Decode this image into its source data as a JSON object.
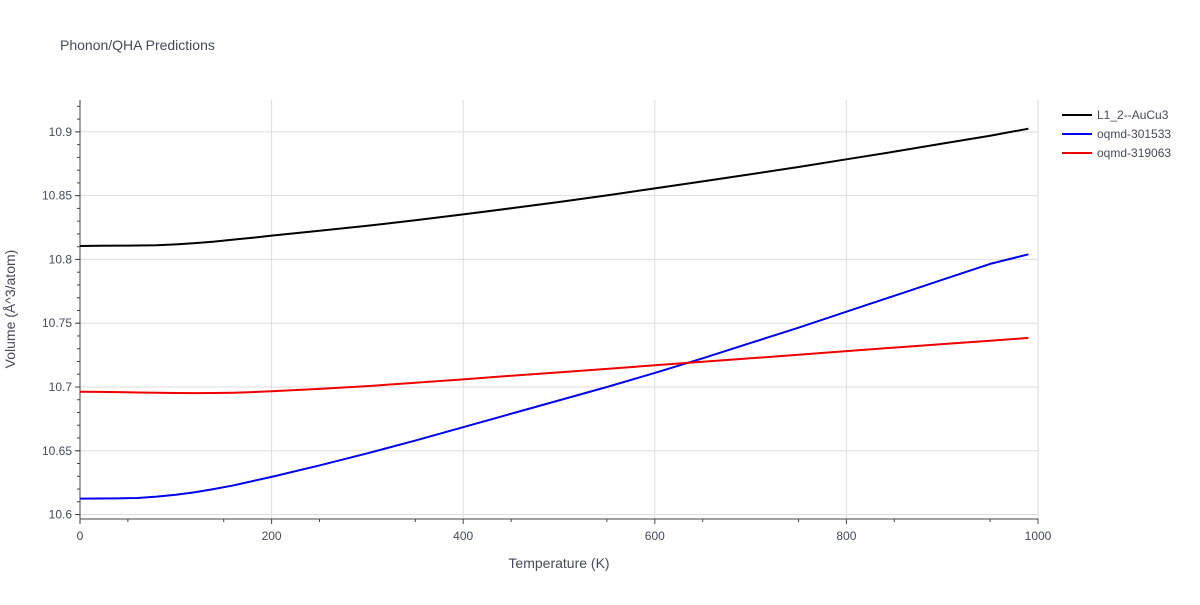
{
  "chart_data": {
    "type": "line",
    "title": "Phonon/QHA Predictions",
    "xlabel": "Temperature (K)",
    "ylabel": "Volume (Å^3/atom)",
    "xlim": [
      0,
      1000
    ],
    "ylim": [
      10.5965,
      10.925
    ],
    "xticks": [
      0,
      200,
      400,
      600,
      800,
      1000
    ],
    "yticks": [
      10.6,
      10.65,
      10.7,
      10.75,
      10.8,
      10.85,
      10.9
    ],
    "xtick_labels": [
      "0",
      "200",
      "400",
      "600",
      "800",
      "1000"
    ],
    "ytick_labels": [
      "10.6",
      "10.65",
      "10.7",
      "10.75",
      "10.8",
      "10.85",
      "10.9"
    ],
    "grid": true,
    "legend_position": "top-right",
    "series": [
      {
        "name": "L1_2--AuCu3",
        "color": "#000000",
        "x": [
          0,
          20,
          40,
          60,
          80,
          100,
          120,
          140,
          160,
          180,
          200,
          250,
          300,
          350,
          400,
          450,
          500,
          550,
          600,
          650,
          700,
          750,
          800,
          850,
          900,
          950,
          990
        ],
        "y": [
          10.8105,
          10.8107,
          10.8108,
          10.8109,
          10.8111,
          10.8118,
          10.8128,
          10.814,
          10.8155,
          10.817,
          10.8187,
          10.8225,
          10.8264,
          10.8307,
          10.8353,
          10.8401,
          10.845,
          10.8502,
          10.8557,
          10.8612,
          10.8668,
          10.8725,
          10.8785,
          10.8845,
          10.8908,
          10.897,
          10.9025
        ]
      },
      {
        "name": "oqmd-301533",
        "color": "#0000ee",
        "x": [
          0,
          20,
          40,
          60,
          80,
          100,
          120,
          140,
          160,
          180,
          200,
          250,
          300,
          350,
          400,
          450,
          500,
          550,
          600,
          650,
          700,
          750,
          800,
          850,
          900,
          950,
          990
        ],
        "y": [
          10.6125,
          10.6126,
          10.6127,
          10.613,
          10.614,
          10.6155,
          10.6175,
          10.62,
          10.6228,
          10.6262,
          10.6295,
          10.6385,
          10.648,
          10.658,
          10.6685,
          10.679,
          10.6895,
          10.7,
          10.711,
          10.7225,
          10.7345,
          10.7465,
          10.759,
          10.7715,
          10.784,
          10.7965,
          10.804
        ]
      },
      {
        "name": "oqmd-319063",
        "color": "#ee0000",
        "x": [
          0,
          20,
          40,
          60,
          80,
          100,
          120,
          140,
          160,
          180,
          200,
          250,
          300,
          350,
          400,
          450,
          500,
          550,
          600,
          650,
          700,
          750,
          800,
          850,
          900,
          950,
          990
        ],
        "y": [
          10.6963,
          10.6962,
          10.696,
          10.6957,
          10.6955,
          10.6953,
          10.6952,
          10.6953,
          10.6955,
          10.696,
          10.6967,
          10.6985,
          10.7007,
          10.7033,
          10.706,
          10.7088,
          10.7115,
          10.7142,
          10.717,
          10.7198,
          10.7225,
          10.7253,
          10.7281,
          10.7309,
          10.7336,
          10.7362,
          10.7385
        ]
      }
    ]
  }
}
